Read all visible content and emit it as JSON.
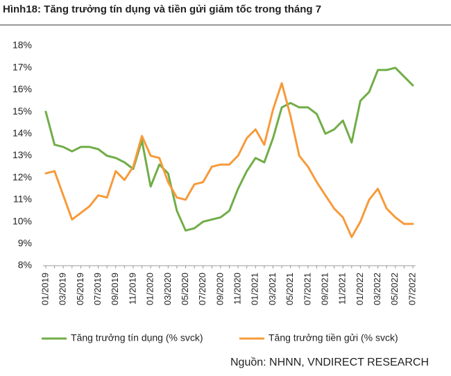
{
  "chart_data": {
    "type": "line",
    "title": "Hình18: Tăng  trưởng tín dụng và tiền gửi giảm tốc trong tháng 7",
    "source": "Nguồn: NHNN, VNDIRECT RESEARCH",
    "categories": [
      "01/2019",
      null,
      "03/2019",
      null,
      "05/2019",
      null,
      "07/2019",
      null,
      "09/2019",
      null,
      "11/2019",
      null,
      "01/2020",
      null,
      "03/2020",
      null,
      "05/2020",
      null,
      "07/2020",
      null,
      "09/2020",
      null,
      "11/2020",
      null,
      "01/2021",
      null,
      "03/2021",
      null,
      "05/2021",
      null,
      "07/2021",
      null,
      "09/2021",
      null,
      "11/2021",
      null,
      "01/2022",
      null,
      "03/2022",
      null,
      "05/2022",
      null,
      "07/2022"
    ],
    "series": [
      {
        "name": "Tăng trưởng tín dụng (% svck)",
        "color": "#70ad47",
        "values": [
          15.0,
          13.5,
          13.4,
          13.2,
          13.4,
          13.4,
          13.3,
          13.0,
          12.9,
          12.7,
          12.4,
          13.7,
          11.6,
          12.6,
          12.2,
          10.5,
          9.6,
          9.7,
          10.0,
          10.1,
          10.2,
          10.5,
          11.5,
          12.3,
          12.9,
          12.7,
          13.8,
          15.2,
          15.4,
          15.2,
          15.2,
          14.9,
          14.0,
          14.2,
          14.6,
          13.6,
          15.5,
          15.9,
          16.9,
          16.9,
          17.0,
          16.6,
          16.2
        ]
      },
      {
        "name": "Tăng trưởng tiền gửi (% svck)",
        "color": "#f79a3a",
        "values": [
          12.2,
          12.3,
          11.2,
          10.1,
          10.4,
          10.7,
          11.2,
          11.1,
          12.3,
          11.9,
          12.5,
          13.9,
          13.0,
          12.9,
          11.8,
          11.1,
          11.0,
          11.7,
          11.8,
          12.5,
          12.6,
          12.6,
          13.0,
          13.8,
          14.2,
          13.5,
          15.1,
          16.3,
          14.8,
          13.0,
          12.5,
          11.8,
          11.2,
          10.6,
          10.2,
          9.3,
          10.0,
          11.0,
          11.5,
          10.6,
          10.2,
          9.9,
          9.9
        ]
      }
    ],
    "ylim": [
      8,
      18
    ],
    "yticks": [
      {
        "value": 8,
        "label": "8%"
      },
      {
        "value": 9,
        "label": "9%"
      },
      {
        "value": 10,
        "label": "10%"
      },
      {
        "value": 11,
        "label": "11%"
      },
      {
        "value": 12,
        "label": "12%"
      },
      {
        "value": 13,
        "label": "13%"
      },
      {
        "value": 14,
        "label": "14%"
      },
      {
        "value": 15,
        "label": "15%"
      },
      {
        "value": 16,
        "label": "16%"
      },
      {
        "value": 17,
        "label": "17%"
      },
      {
        "value": 18,
        "label": "18%"
      }
    ]
  }
}
